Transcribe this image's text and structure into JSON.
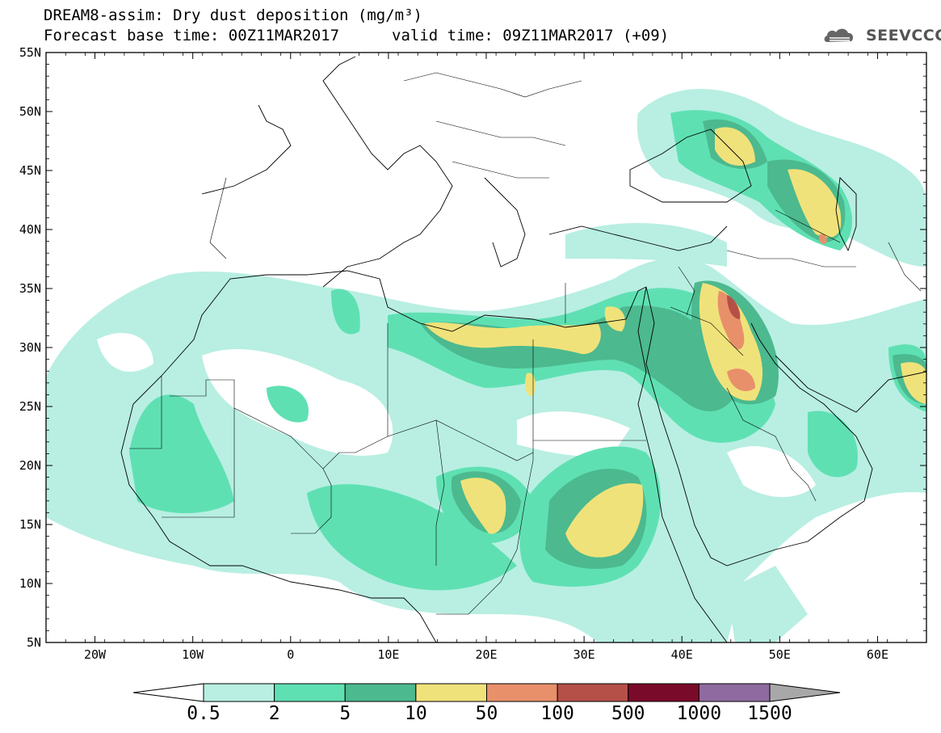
{
  "header": {
    "title_line1": "DREAM8-assim: Dry dust deposition (mg/m³)",
    "title_line2_left": "Forecast base time: 00Z11MAR2017",
    "title_line2_right": "valid time: 09Z11MAR2017 (+09)",
    "logo_text": "SEEVCCC",
    "logo_icon": "cloud-logo-icon"
  },
  "map": {
    "lon_range": [
      -25,
      65
    ],
    "lat_range": [
      5,
      55
    ],
    "lat_labels": [
      "55N",
      "50N",
      "45N",
      "40N",
      "35N",
      "30N",
      "25N",
      "20N",
      "15N",
      "10N",
      "5N"
    ],
    "lon_labels": [
      "20W",
      "10W",
      "0",
      "10E",
      "20E",
      "30E",
      "40E",
      "50E",
      "60E"
    ]
  },
  "colorbar": {
    "labels": [
      "0.5",
      "2",
      "5",
      "10",
      "50",
      "100",
      "500",
      "1000",
      "1500"
    ],
    "colors": [
      "#b8efe2",
      "#5fe0b3",
      "#4cb98f",
      "#f0e27a",
      "#e8906a",
      "#b55048",
      "#7a0a2a",
      "#8e6aa0"
    ],
    "under_color": "#ffffff",
    "over_color": "#a8a8a8"
  },
  "colors": {
    "level1": "#b8efe2",
    "level2": "#5fe0b3",
    "level3": "#4cb98f",
    "level4": "#f0e27a",
    "level5": "#e8906a",
    "level6": "#b55048"
  }
}
